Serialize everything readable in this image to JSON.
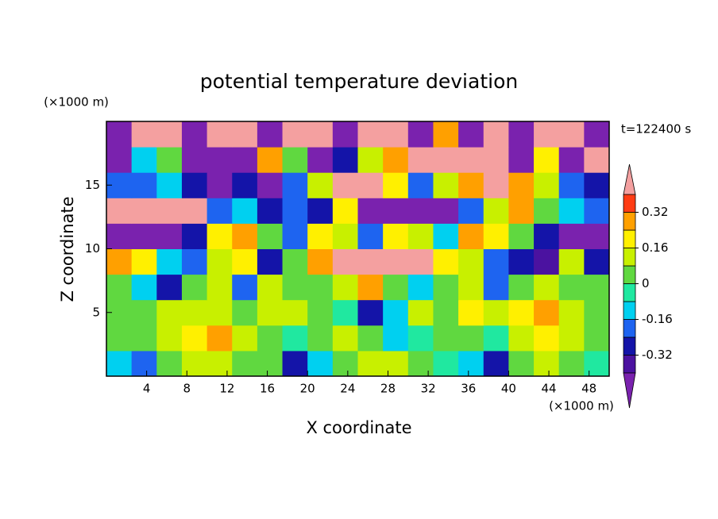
{
  "chart_data": {
    "type": "contour",
    "title": "potential temperature deviation",
    "x_label": "X coordinate",
    "y_label": "Z coordinate",
    "x_unit": "(×1000 m)",
    "y_unit": "(×1000 m)",
    "annotation": "t=122400 s",
    "xlim": [
      0,
      50
    ],
    "xticks": [
      4,
      8,
      12,
      16,
      20,
      24,
      28,
      32,
      36,
      40,
      44,
      48
    ],
    "ylim": [
      0,
      20
    ],
    "yticks": [
      5,
      10,
      15
    ],
    "levels": [
      -0.4,
      -0.32,
      -0.24,
      -0.16,
      -0.08,
      0,
      0.08,
      0.16,
      0.24,
      0.32,
      0.4
    ],
    "colorbar_ticks": [
      -0.32,
      -0.16,
      0,
      0.16,
      0.32
    ],
    "colors": [
      "#7a22ae",
      "#4b12a0",
      "#1414a8",
      "#1e64f0",
      "#00d0f0",
      "#20e8a0",
      "#60d840",
      "#c8f000",
      "#fff000",
      "#ffa000",
      "#ff3c14",
      "#f4a0a0"
    ],
    "z": [
      [
        -0.1,
        -0.2,
        0.05,
        0.1,
        0.15,
        0.05,
        0.0,
        -0.3,
        -0.1,
        0.05,
        0.1,
        0.15,
        0.05,
        -0.05,
        -0.1,
        -0.3,
        0.0,
        0.1,
        0.05,
        -0.05
      ],
      [
        0.0,
        0.05,
        0.15,
        0.2,
        0.25,
        0.1,
        0.0,
        -0.05,
        0.05,
        0.1,
        0.0,
        -0.1,
        -0.05,
        0.05,
        0.0,
        -0.05,
        0.1,
        0.2,
        0.1,
        0.0
      ],
      [
        0.05,
        0.05,
        0.1,
        0.15,
        0.1,
        0.0,
        0.1,
        0.15,
        0.05,
        -0.05,
        -0.3,
        -0.1,
        0.1,
        0.0,
        0.2,
        0.1,
        0.2,
        0.3,
        0.1,
        0.0
      ],
      [
        0.05,
        -0.15,
        -0.3,
        0.0,
        0.1,
        -0.2,
        0.1,
        0.05,
        0.0,
        0.1,
        0.3,
        0.05,
        -0.1,
        0.0,
        0.15,
        -0.2,
        0.05,
        0.1,
        0.0,
        0.05
      ],
      [
        0.3,
        0.2,
        -0.1,
        -0.2,
        0.1,
        0.2,
        -0.3,
        0.0,
        0.3,
        0.45,
        0.45,
        0.45,
        0.45,
        0.2,
        0.1,
        -0.2,
        -0.3,
        -0.35,
        0.1,
        -0.3
      ],
      [
        -0.45,
        -0.45,
        -0.45,
        -0.3,
        0.2,
        0.3,
        0.0,
        -0.2,
        0.2,
        0.1,
        -0.2,
        0.2,
        0.1,
        -0.1,
        0.3,
        0.2,
        0.0,
        -0.3,
        -0.45,
        -0.45
      ],
      [
        0.45,
        0.45,
        0.45,
        0.45,
        -0.2,
        -0.1,
        -0.3,
        -0.2,
        -0.3,
        0.2,
        -0.45,
        -0.45,
        -0.45,
        -0.45,
        -0.2,
        0.1,
        0.3,
        0.0,
        -0.1,
        -0.2
      ],
      [
        -0.2,
        -0.2,
        -0.1,
        -0.3,
        -0.45,
        -0.3,
        -0.45,
        -0.2,
        0.1,
        0.45,
        0.45,
        0.2,
        -0.2,
        0.1,
        0.3,
        0.45,
        0.3,
        0.1,
        -0.2,
        -0.25
      ],
      [
        -0.45,
        -0.1,
        0.0,
        -0.45,
        -0.45,
        -0.45,
        0.3,
        0.0,
        -0.45,
        -0.3,
        0.1,
        0.3,
        0.45,
        0.45,
        0.45,
        0.45,
        -0.45,
        0.2,
        -0.45,
        0.45
      ],
      [
        -0.45,
        0.45,
        0.45,
        -0.45,
        0.45,
        0.45,
        -0.45,
        0.45,
        0.45,
        -0.45,
        0.45,
        0.45,
        -0.45,
        0.3,
        -0.45,
        0.45,
        -0.45,
        0.45,
        0.45,
        -0.45
      ]
    ]
  }
}
